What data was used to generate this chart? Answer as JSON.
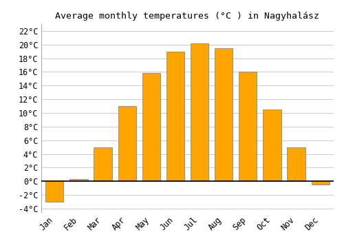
{
  "months": [
    "Jan",
    "Feb",
    "Mar",
    "Apr",
    "May",
    "Jun",
    "Jul",
    "Aug",
    "Sep",
    "Oct",
    "Nov",
    "Dec"
  ],
  "temperatures": [
    -3.0,
    0.3,
    5.0,
    11.0,
    15.8,
    19.0,
    20.2,
    19.5,
    16.0,
    10.5,
    5.0,
    -0.5
  ],
  "bar_color": "#FFA500",
  "bar_edge_color": "#888888",
  "title": "Average monthly temperatures (°C ) in Nagyhalász",
  "ylim": [
    -4.5,
    23.0
  ],
  "yticks": [
    -4,
    -2,
    0,
    2,
    4,
    6,
    8,
    10,
    12,
    14,
    16,
    18,
    20,
    22
  ],
  "background_color": "#ffffff",
  "grid_color": "#cccccc",
  "title_fontsize": 9.5,
  "tick_fontsize": 8.5,
  "bar_width": 0.75
}
